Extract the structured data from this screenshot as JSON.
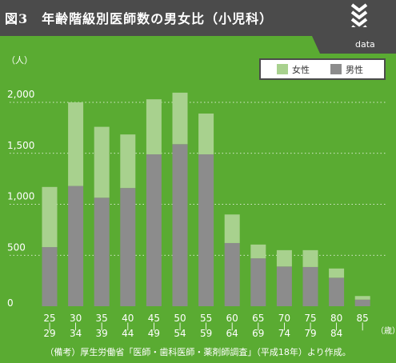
{
  "header": {
    "figure_title": "図3　年齢階級別医師数の男女比（小児科）",
    "data_tag": "data",
    "header_color": "#4b4b4b",
    "background_color": "#5aab32"
  },
  "chart_data": {
    "type": "bar",
    "stacked": true,
    "ylabel": "（人）",
    "xlabel": "（歳）",
    "ylim": [
      0,
      2000
    ],
    "y_ticks": [
      0,
      500,
      1000,
      1500,
      2000
    ],
    "y_tick_labels": [
      "0",
      "500",
      "1,000",
      "1,500",
      "2,000"
    ],
    "grid": true,
    "legend_position": "top-right",
    "categories": [
      {
        "top": "25",
        "bottom": "29"
      },
      {
        "top": "30",
        "bottom": "34"
      },
      {
        "top": "35",
        "bottom": "39"
      },
      {
        "top": "40",
        "bottom": "44"
      },
      {
        "top": "45",
        "bottom": "49"
      },
      {
        "top": "50",
        "bottom": "54"
      },
      {
        "top": "55",
        "bottom": "59"
      },
      {
        "top": "60",
        "bottom": "64"
      },
      {
        "top": "65",
        "bottom": "69"
      },
      {
        "top": "70",
        "bottom": "74"
      },
      {
        "top": "75",
        "bottom": "79"
      },
      {
        "top": "80",
        "bottom": "84"
      },
      {
        "top": "85",
        "bottom": ""
      }
    ],
    "series": [
      {
        "name": "男性",
        "color": "#8c8c8c",
        "values": [
          580,
          1180,
          1065,
          1160,
          1490,
          1590,
          1490,
          620,
          470,
          390,
          385,
          280,
          65
        ]
      },
      {
        "name": "女性",
        "color": "#a8d18e",
        "values": [
          590,
          820,
          695,
          525,
          540,
          505,
          400,
          280,
          135,
          160,
          165,
          90,
          35
        ]
      }
    ],
    "legend": [
      {
        "name": "女性",
        "color": "#a8d18e"
      },
      {
        "name": "男性",
        "color": "#8c8c8c"
      }
    ]
  },
  "footnote": "（備考）厚生労働省「医師・歯科医師・薬剤師調査」（平成18年）より作成。"
}
